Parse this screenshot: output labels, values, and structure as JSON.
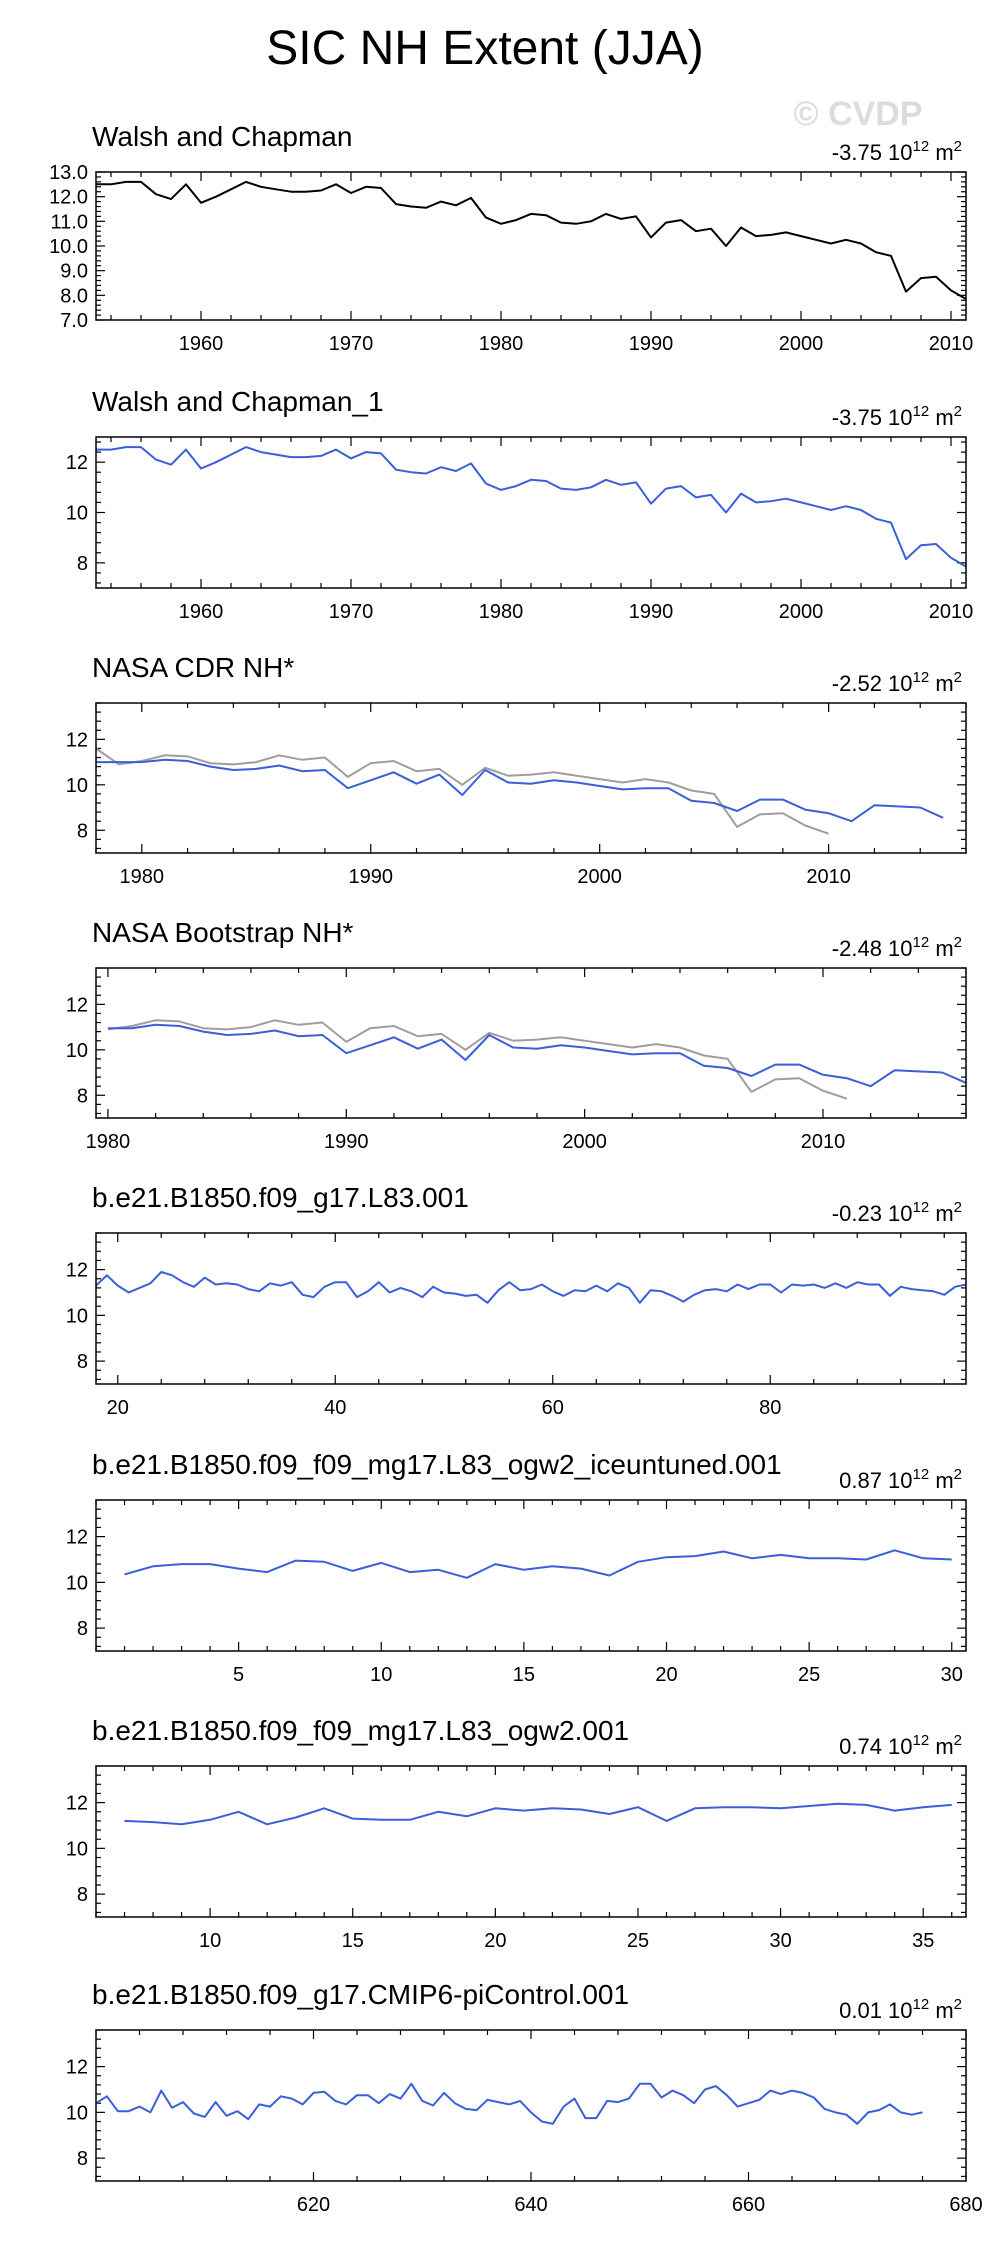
{
  "figure": {
    "title": "SIC NH Extent (JJA)",
    "watermark": "© CVDP",
    "trend_unit": "m",
    "trend_scale": "10",
    "trend_exp": "12",
    "trend_exp2": "2"
  },
  "colors": {
    "obs": "#000000",
    "model": "#3a5fd9",
    "overlay": "#9e9e9e"
  },
  "chart_data": [
    {
      "type": "line",
      "title": "Walsh and Chapman",
      "trend_value": "-3.75",
      "xlim": [
        1953,
        2011
      ],
      "ylim": [
        7.0,
        13.0
      ],
      "yticks": [
        7.0,
        8.0,
        9.0,
        10.0,
        11.0,
        12.0,
        13.0
      ],
      "ytick_labels": [
        "7.0",
        "8.0",
        "9.0",
        "10.0",
        "11.0",
        "12.0",
        "13.0"
      ],
      "xticks": [
        1960,
        1970,
        1980,
        1990,
        2000,
        2010
      ],
      "x_start": 1953,
      "series": [
        {
          "name": "Walsh and Chapman",
          "color": "#000000",
          "values": [
            12.5,
            12.5,
            12.6,
            12.6,
            12.1,
            11.9,
            12.5,
            11.75,
            12.0,
            12.3,
            12.6,
            12.4,
            12.3,
            12.2,
            12.2,
            12.25,
            12.5,
            12.15,
            12.4,
            12.35,
            11.7,
            11.6,
            11.55,
            11.8,
            11.65,
            11.95,
            11.15,
            10.9,
            11.05,
            11.3,
            11.25,
            10.95,
            10.9,
            11.0,
            11.3,
            11.1,
            11.2,
            10.35,
            10.95,
            11.05,
            10.6,
            10.7,
            10.0,
            10.75,
            10.4,
            10.45,
            10.55,
            10.4,
            10.25,
            10.1,
            10.25,
            10.1,
            9.75,
            9.6,
            8.15,
            8.7,
            8.75,
            8.2,
            7.85
          ]
        }
      ]
    },
    {
      "type": "line",
      "title": "Walsh and Chapman_1",
      "trend_value": "-3.75",
      "xlim": [
        1953,
        2011
      ],
      "ylim": [
        7.0,
        13.0
      ],
      "yticks": [
        8,
        10,
        12
      ],
      "ytick_labels": [
        "8",
        "10",
        "12"
      ],
      "xticks": [
        1960,
        1970,
        1980,
        1990,
        2000,
        2010
      ],
      "x_start": 1953,
      "series": [
        {
          "name": "Walsh and Chapman_1",
          "color": "#3a5fd9",
          "values": [
            12.5,
            12.5,
            12.6,
            12.6,
            12.1,
            11.9,
            12.5,
            11.75,
            12.0,
            12.3,
            12.6,
            12.4,
            12.3,
            12.2,
            12.2,
            12.25,
            12.5,
            12.15,
            12.4,
            12.35,
            11.7,
            11.6,
            11.55,
            11.8,
            11.65,
            11.95,
            11.15,
            10.9,
            11.05,
            11.3,
            11.25,
            10.95,
            10.9,
            11.0,
            11.3,
            11.1,
            11.2,
            10.35,
            10.95,
            11.05,
            10.6,
            10.7,
            10.0,
            10.75,
            10.4,
            10.45,
            10.55,
            10.4,
            10.25,
            10.1,
            10.25,
            10.1,
            9.75,
            9.6,
            8.15,
            8.7,
            8.75,
            8.2,
            7.85
          ]
        }
      ]
    },
    {
      "type": "line",
      "title": "NASA CDR NH*",
      "trend_value": "-2.52",
      "xlim": [
        1978,
        2016
      ],
      "ylim": [
        7.0,
        13.6
      ],
      "yticks": [
        8,
        10,
        12
      ],
      "ytick_labels": [
        "8",
        "10",
        "12"
      ],
      "xticks": [
        1980,
        1990,
        2000,
        2010
      ],
      "x_start": 1978,
      "series": [
        {
          "name": "Walsh and Chapman (overlay)",
          "color": "#9e9e9e",
          "values": [
            11.6,
            10.9,
            11.05,
            11.3,
            11.25,
            10.95,
            10.9,
            11.0,
            11.3,
            11.1,
            11.2,
            10.35,
            10.95,
            11.05,
            10.6,
            10.7,
            10.0,
            10.75,
            10.4,
            10.45,
            10.55,
            10.4,
            10.25,
            10.1,
            10.25,
            10.1,
            9.75,
            9.6,
            8.15,
            8.7,
            8.75,
            8.2,
            7.85
          ]
        },
        {
          "name": "NASA CDR NH",
          "color": "#3a5fd9",
          "values": [
            11.0,
            11.0,
            11.0,
            11.1,
            11.05,
            10.8,
            10.65,
            10.7,
            10.85,
            10.6,
            10.65,
            9.85,
            10.2,
            10.55,
            10.05,
            10.45,
            9.55,
            10.65,
            10.1,
            10.05,
            10.2,
            10.1,
            9.95,
            9.8,
            9.85,
            9.85,
            9.3,
            9.2,
            8.85,
            9.35,
            9.35,
            8.9,
            8.75,
            8.4,
            9.1,
            9.05,
            9.0,
            8.55
          ]
        }
      ]
    },
    {
      "type": "line",
      "title": "NASA Bootstrap NH*",
      "trend_value": "-2.48",
      "xlim": [
        1979.5,
        2016
      ],
      "ylim": [
        7.0,
        13.6
      ],
      "yticks": [
        8,
        10,
        12
      ],
      "ytick_labels": [
        "8",
        "10",
        "12"
      ],
      "xticks": [
        1980,
        1990,
        2000,
        2010
      ],
      "x_start": 1980,
      "series": [
        {
          "name": "Walsh and Chapman (overlay)",
          "color": "#9e9e9e",
          "values": [
            10.9,
            11.05,
            11.3,
            11.25,
            10.95,
            10.9,
            11.0,
            11.3,
            11.1,
            11.2,
            10.35,
            10.95,
            11.05,
            10.6,
            10.7,
            10.0,
            10.75,
            10.4,
            10.45,
            10.55,
            10.4,
            10.25,
            10.1,
            10.25,
            10.1,
            9.75,
            9.6,
            8.15,
            8.7,
            8.75,
            8.2,
            7.85
          ]
        },
        {
          "name": "NASA Bootstrap NH",
          "color": "#3a5fd9",
          "values": [
            10.95,
            10.95,
            11.1,
            11.05,
            10.8,
            10.65,
            10.7,
            10.85,
            10.6,
            10.65,
            9.85,
            10.2,
            10.55,
            10.05,
            10.45,
            9.55,
            10.65,
            10.1,
            10.05,
            10.2,
            10.1,
            9.95,
            9.8,
            9.85,
            9.85,
            9.3,
            9.2,
            8.85,
            9.35,
            9.35,
            8.9,
            8.75,
            8.4,
            9.1,
            9.05,
            9.0,
            8.55
          ]
        }
      ]
    },
    {
      "type": "line",
      "title": "b.e21.B1850.f09_g17.L83.001",
      "trend_value": "-0.23",
      "xlim": [
        18,
        98
      ],
      "ylim": [
        7.0,
        13.6
      ],
      "yticks": [
        8,
        10,
        12
      ],
      "ytick_labels": [
        "8",
        "10",
        "12"
      ],
      "xticks": [
        20,
        40,
        60,
        80
      ],
      "x_start": 18,
      "series": [
        {
          "name": "b.e21.B1850.f09_g17.L83.001",
          "color": "#3a5fd9",
          "values": [
            11.3,
            11.75,
            11.3,
            11.0,
            11.2,
            11.4,
            11.9,
            11.75,
            11.45,
            11.25,
            11.65,
            11.35,
            11.4,
            11.35,
            11.15,
            11.05,
            11.4,
            11.3,
            11.45,
            10.9,
            10.8,
            11.25,
            11.45,
            11.45,
            10.8,
            11.05,
            11.45,
            11.0,
            11.2,
            11.05,
            10.8,
            11.25,
            11.0,
            10.95,
            10.85,
            10.9,
            10.55,
            11.1,
            11.45,
            11.1,
            11.15,
            11.35,
            11.05,
            10.85,
            11.1,
            11.05,
            11.3,
            11.05,
            11.4,
            11.2,
            10.55,
            11.1,
            11.05,
            10.85,
            10.6,
            10.9,
            11.1,
            11.15,
            11.05,
            11.35,
            11.15,
            11.35,
            11.35,
            11.0,
            11.35,
            11.3,
            11.35,
            11.2,
            11.4,
            11.2,
            11.45,
            11.35,
            11.35,
            10.85,
            11.25,
            11.15,
            11.1,
            11.05,
            10.9,
            11.25,
            11.35
          ]
        }
      ]
    },
    {
      "type": "line",
      "title": "b.e21.B1850.f09_f09_mg17.L83_ogw2_iceuntuned.001",
      "trend_value": "0.87",
      "xlim": [
        0,
        30.5
      ],
      "ylim": [
        7.0,
        13.6
      ],
      "yticks": [
        8,
        10,
        12
      ],
      "ytick_labels": [
        "8",
        "10",
        "12"
      ],
      "xticks": [
        5,
        10,
        15,
        20,
        25,
        30
      ],
      "x_start": 1,
      "series": [
        {
          "name": "b.e21.B1850.f09_f09_mg17.L83_ogw2_iceuntuned.001",
          "color": "#3a5fd9",
          "values": [
            10.35,
            10.7,
            10.8,
            10.8,
            10.6,
            10.45,
            10.95,
            10.9,
            10.5,
            10.85,
            10.45,
            10.55,
            10.2,
            10.8,
            10.55,
            10.7,
            10.6,
            10.3,
            10.9,
            11.1,
            11.15,
            11.35,
            11.05,
            11.2,
            11.05,
            11.05,
            11.0,
            11.4,
            11.05,
            11.0
          ]
        }
      ]
    },
    {
      "type": "line",
      "title": "b.e21.B1850.f09_f09_mg17.L83_ogw2.001",
      "trend_value": "0.74",
      "xlim": [
        6,
        36.5
      ],
      "ylim": [
        7.0,
        13.6
      ],
      "yticks": [
        8,
        10,
        12
      ],
      "ytick_labels": [
        "8",
        "10",
        "12"
      ],
      "xticks": [
        10,
        15,
        20,
        25,
        30,
        35
      ],
      "x_start": 7,
      "series": [
        {
          "name": "b.e21.B1850.f09_f09_mg17.L83_ogw2.001",
          "color": "#3a5fd9",
          "values": [
            11.2,
            11.15,
            11.05,
            11.25,
            11.6,
            11.05,
            11.35,
            11.75,
            11.3,
            11.25,
            11.25,
            11.6,
            11.4,
            11.75,
            11.65,
            11.75,
            11.7,
            11.5,
            11.8,
            11.2,
            11.75,
            11.8,
            11.8,
            11.75,
            11.85,
            11.95,
            11.9,
            11.65,
            11.8,
            11.9
          ]
        }
      ]
    },
    {
      "type": "line",
      "title": "b.e21.B1850.f09_g17.CMIP6-piControl.001",
      "trend_value": "0.01",
      "xlim": [
        600,
        680
      ],
      "ylim": [
        7.0,
        13.6
      ],
      "yticks": [
        8,
        10,
        12
      ],
      "ytick_labels": [
        "8",
        "10",
        "12"
      ],
      "xticks": [
        620,
        640,
        660,
        680
      ],
      "x_start": 600,
      "series": [
        {
          "name": "b.e21.B1850.f09_g17.CMIP6-piControl.001",
          "color": "#3a5fd9",
          "values": [
            10.4,
            10.7,
            10.05,
            10.05,
            10.25,
            10.0,
            10.95,
            10.2,
            10.45,
            9.95,
            9.8,
            10.45,
            9.85,
            10.05,
            9.7,
            10.35,
            10.25,
            10.7,
            10.6,
            10.35,
            10.85,
            10.9,
            10.5,
            10.35,
            10.75,
            10.75,
            10.4,
            10.8,
            10.6,
            11.25,
            10.5,
            10.3,
            10.85,
            10.4,
            10.15,
            10.1,
            10.55,
            10.45,
            10.35,
            10.5,
            10.0,
            9.6,
            9.5,
            10.25,
            10.6,
            9.75,
            9.75,
            10.5,
            10.45,
            10.6,
            11.25,
            11.25,
            10.65,
            10.95,
            10.75,
            10.4,
            11.0,
            11.15,
            10.75,
            10.25,
            10.4,
            10.55,
            10.95,
            10.8,
            10.95,
            10.85,
            10.65,
            10.15,
            10.0,
            9.9,
            9.5,
            10.0,
            10.1,
            10.35,
            10.0,
            9.9,
            10.0
          ]
        }
      ]
    }
  ]
}
